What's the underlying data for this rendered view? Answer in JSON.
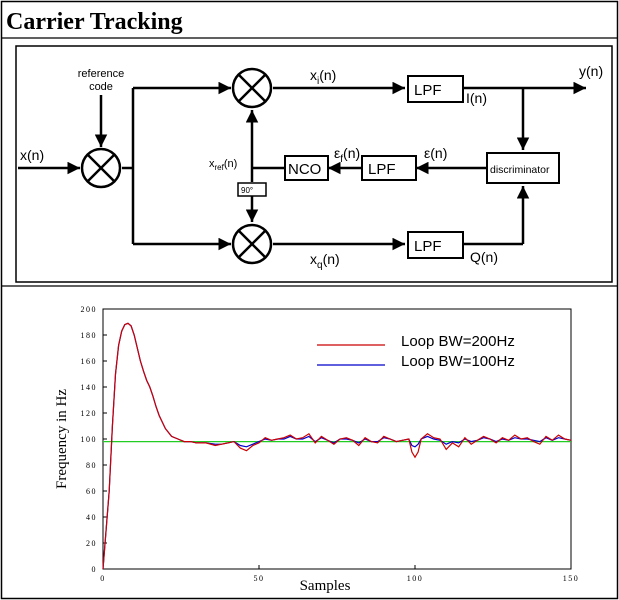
{
  "title": "Carrier Tracking",
  "diagram": {
    "input": "x(n)",
    "reference_code": [
      "reference",
      "code"
    ],
    "xi": {
      "base": "x",
      "sub": "i",
      "tail": "(n)"
    },
    "xq": {
      "base": "x",
      "sub": "q",
      "tail": "(n)"
    },
    "lpf_i": "LPF",
    "lpf_q": "LPF",
    "lpf_err": "LPF",
    "i_out": "I(n)",
    "q_out": "Q(n)",
    "y_out": "y(n)",
    "epsilon": "ε(n)",
    "epsilon_f": {
      "base": "ε",
      "sub": "f",
      "tail": "(n)"
    },
    "nco": "NCO",
    "xref": {
      "base": "x",
      "sub": "ref",
      "tail": "(n)"
    },
    "phase_shift": "90°",
    "discriminator": "discriminator"
  },
  "colors": {
    "series_200": "#cc0000",
    "series_100": "#0000cc",
    "reference_line": "#22cc22"
  },
  "chart_data": {
    "type": "line",
    "xlabel": "Samples",
    "ylabel": "Frequency in Hz",
    "xlim": [
      0,
      150
    ],
    "ylim": [
      0,
      200
    ],
    "xticks": [
      0,
      50,
      100,
      150
    ],
    "yticks": [
      0,
      20,
      40,
      60,
      80,
      100,
      120,
      140,
      160,
      180,
      200
    ],
    "grid": false,
    "legend_position": "top-right",
    "reference_value": 98,
    "series": [
      {
        "name": "Loop BW=200Hz",
        "color": "#cc0000",
        "x": [
          0,
          2,
          3,
          4,
          5,
          6,
          7,
          8,
          9,
          10,
          11,
          12,
          13,
          14,
          15,
          16,
          17,
          18,
          20,
          22,
          24,
          26,
          28,
          30,
          33,
          36,
          38,
          40,
          42,
          44,
          46,
          48,
          50,
          52,
          54,
          56,
          58,
          60,
          62,
          64,
          66,
          68,
          70,
          72,
          74,
          76,
          78,
          80,
          82,
          84,
          86,
          88,
          90,
          92,
          94,
          96,
          98,
          99,
          100,
          101,
          102,
          104,
          106,
          108,
          110,
          112,
          114,
          116,
          118,
          120,
          122,
          124,
          126,
          128,
          130,
          132,
          134,
          136,
          138,
          140,
          142,
          144,
          146,
          148,
          150
        ],
        "y": [
          0,
          60,
          110,
          150,
          172,
          183,
          188,
          189,
          187,
          180,
          170,
          160,
          152,
          145,
          140,
          133,
          125,
          118,
          108,
          102,
          100,
          98,
          98,
          97,
          97,
          95,
          96,
          97,
          98,
          93,
          91,
          95,
          97,
          101,
          99,
          100,
          101,
          103,
          100,
          101,
          104,
          97,
          102,
          99,
          96,
          100,
          101,
          99,
          95,
          101,
          98,
          97,
          102,
          100,
          98,
          99,
          100,
          90,
          86,
          90,
          100,
          104,
          101,
          100,
          92,
          97,
          94,
          101,
          96,
          99,
          102,
          100,
          97,
          101,
          99,
          103,
          100,
          101,
          98,
          96,
          102,
          99,
          103,
          100,
          99
        ]
      },
      {
        "name": "Loop BW=100Hz",
        "color": "#0000cc",
        "x": [
          0,
          2,
          3,
          4,
          5,
          6,
          7,
          8,
          9,
          10,
          11,
          12,
          13,
          14,
          15,
          16,
          17,
          18,
          20,
          22,
          24,
          26,
          28,
          30,
          33,
          36,
          38,
          40,
          42,
          44,
          46,
          48,
          50,
          52,
          54,
          56,
          58,
          60,
          62,
          64,
          66,
          68,
          70,
          72,
          74,
          76,
          78,
          80,
          82,
          84,
          86,
          88,
          90,
          92,
          94,
          96,
          98,
          99,
          100,
          101,
          102,
          104,
          106,
          108,
          110,
          112,
          114,
          116,
          118,
          120,
          122,
          124,
          126,
          128,
          130,
          132,
          134,
          136,
          138,
          140,
          142,
          144,
          146,
          148,
          150
        ],
        "y": [
          0,
          60,
          110,
          150,
          172,
          183,
          188,
          189,
          187,
          180,
          170,
          160,
          152,
          145,
          140,
          133,
          125,
          118,
          108,
          102,
          100,
          98,
          98,
          97,
          97,
          96,
          96,
          97,
          98,
          95,
          94,
          96,
          98,
          100,
          99,
          100,
          100,
          102,
          100,
          100,
          102,
          98,
          101,
          99,
          97,
          100,
          100,
          99,
          97,
          100,
          98,
          98,
          101,
          100,
          98,
          99,
          100,
          95,
          94,
          96,
          100,
          102,
          100,
          99,
          96,
          98,
          97,
          100,
          98,
          99,
          101,
          100,
          98,
          100,
          99,
          101,
          100,
          100,
          99,
          98,
          101,
          99,
          101,
          100,
          99
        ]
      }
    ]
  }
}
